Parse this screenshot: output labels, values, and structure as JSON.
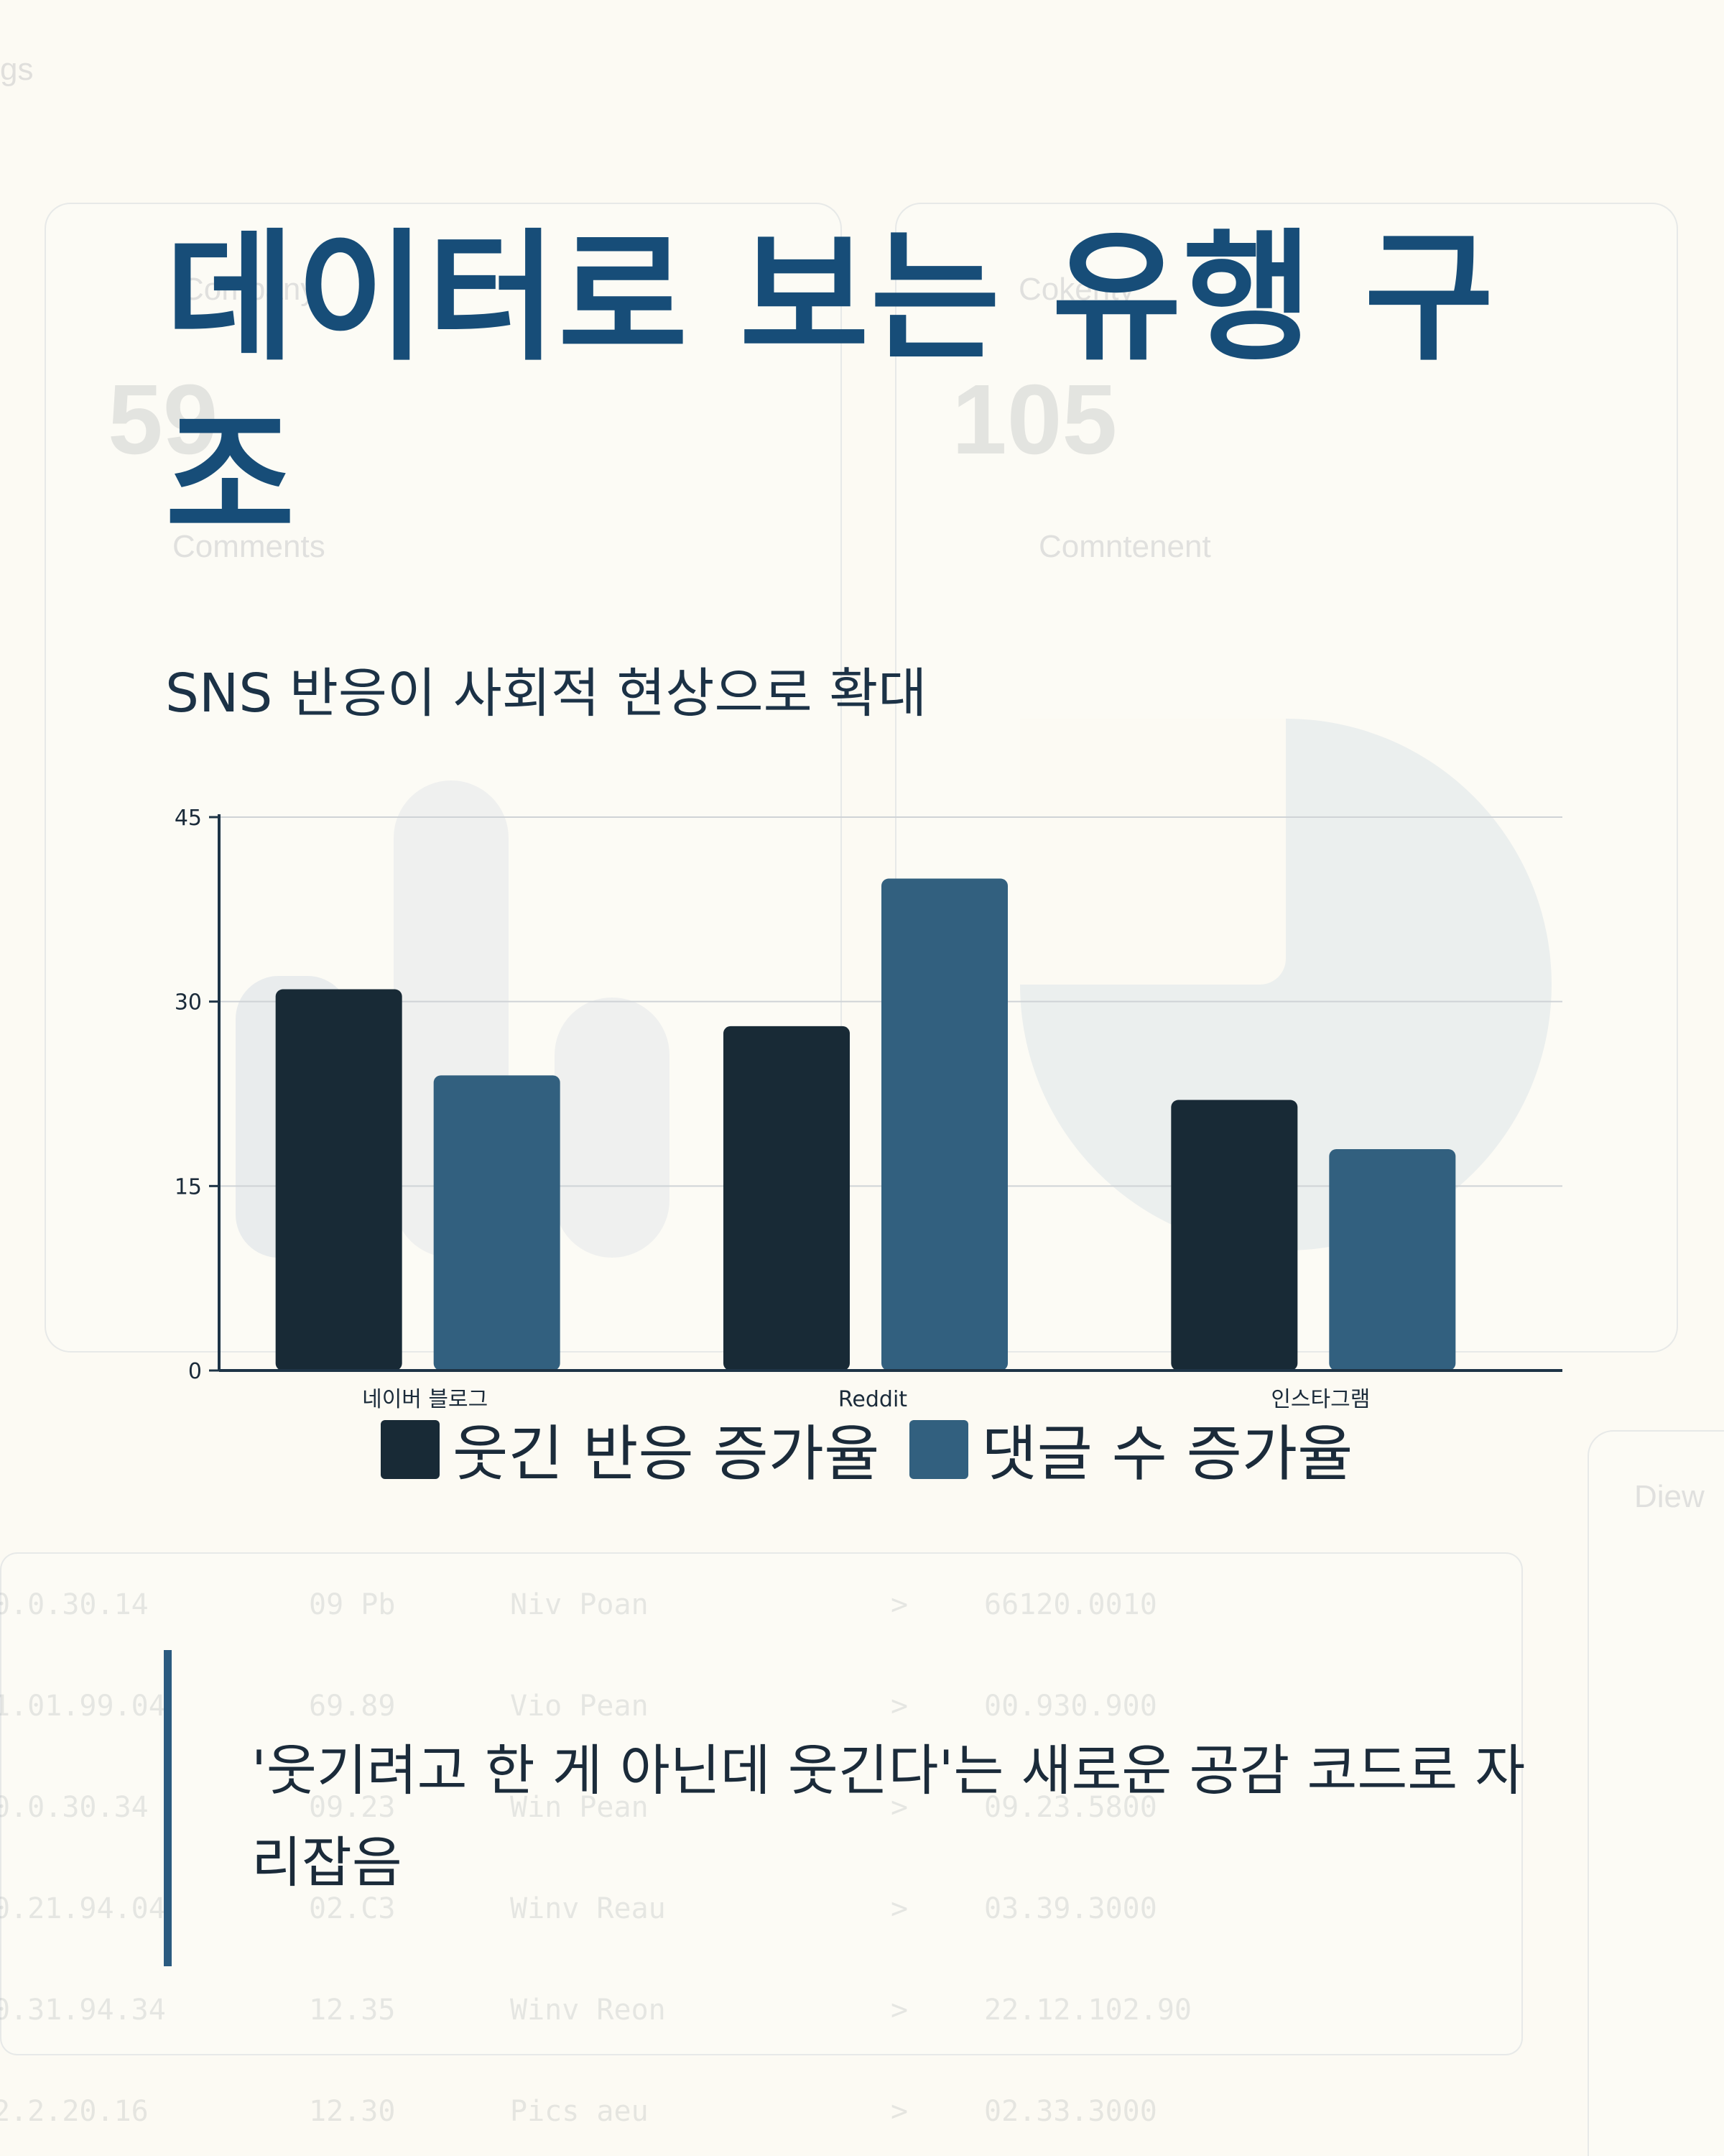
{
  "title": "데이터로 보는 유행 구조",
  "subtitle": "SNS 반응이 사회적 현상으로 확대",
  "quote": "'웃기려고 한 게 아닌데 웃긴다'는 새로운 공감 코드로 자리잡음",
  "colors": {
    "title": "#174d78",
    "series_dark": "#182a36",
    "series_blue": "#32607f",
    "accent_bar": "#2b5b80",
    "background": "#fcfaf3"
  },
  "chart_data": {
    "type": "bar",
    "categories": [
      "네이버 블로그",
      "Reddit",
      "인스타그램"
    ],
    "series": [
      {
        "name": "웃긴 반응 증가율",
        "values": [
          31,
          28,
          22
        ],
        "color": "#182a36"
      },
      {
        "name": "댓글 수 증가율",
        "values": [
          24,
          40,
          18
        ],
        "color": "#32607f"
      }
    ],
    "yticks": [
      0,
      15,
      30,
      45
    ],
    "ylim": [
      0,
      45
    ],
    "grid": true,
    "legend_position": "bottom"
  },
  "background_dashboard": {
    "stat_cards": [
      {
        "value": "59",
        "label": "Comments",
        "header": "Company"
      },
      {
        "value": "105",
        "label": "Comntenent",
        "header": "Cokenty"
      }
    ],
    "corner_text": "gs",
    "side_label": "Diew",
    "rows": [
      [
        "0.0.30.14",
        "09 Pb",
        "Niv Poan",
        ">",
        "66120.0010"
      ],
      [
        "1.01.99.04",
        "69.89",
        "Vio Pean",
        ">",
        "00.930.900"
      ],
      [
        "0.0.30.34",
        "09.23",
        "Win Pean",
        ">",
        "09.23.5800"
      ],
      [
        "0.21.94.04",
        "02.C3",
        "Winv Reau",
        ">",
        "03.39.3000"
      ],
      [
        "0.31.94.34",
        "12.35",
        "Winv Reon",
        ">",
        "22.12.102.90"
      ],
      [
        "2.2.20.16",
        "12.30",
        "Pics aeu",
        ">",
        "02.33.3000"
      ]
    ]
  }
}
